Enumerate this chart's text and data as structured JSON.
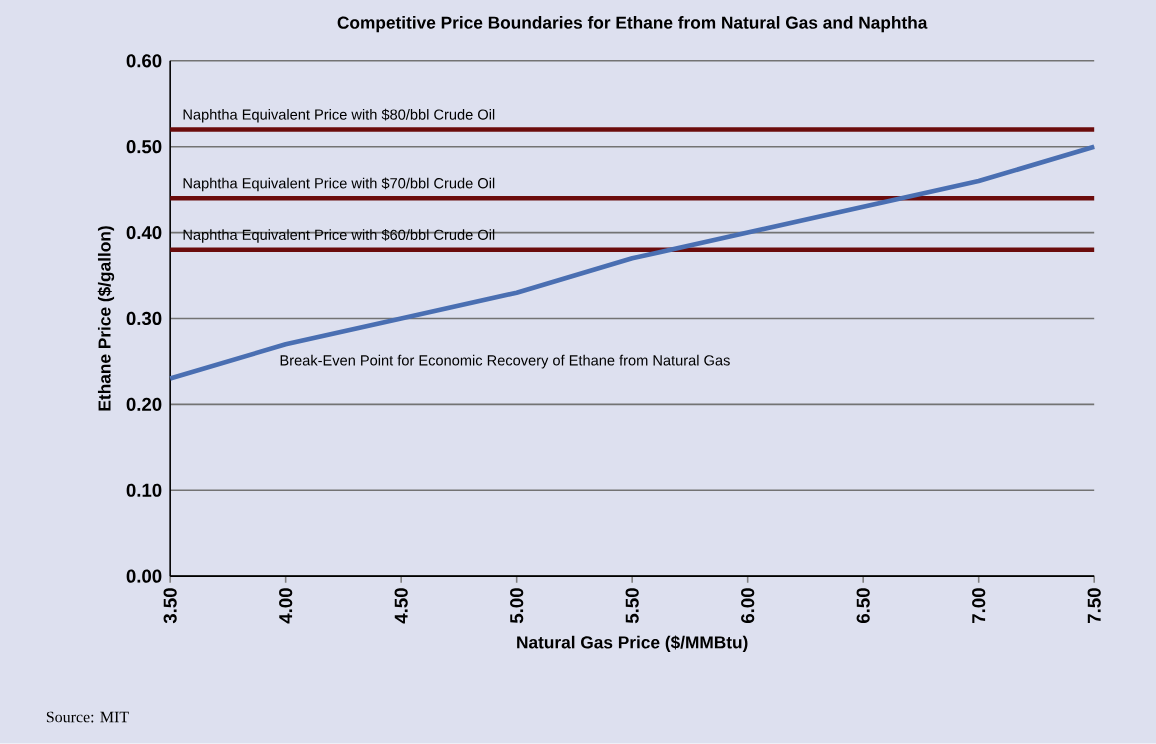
{
  "chart_data": {
    "type": "line",
    "title": "Competitive Price Boundaries for Ethane from Natural Gas and Naphtha",
    "xlabel": "Natural Gas Price ($/MMBtu)",
    "ylabel": "Ethane Price ($/gallon)",
    "x": [
      3.5,
      4.0,
      4.5,
      5.0,
      5.5,
      6.0,
      6.5,
      7.0,
      7.5
    ],
    "series": [
      {
        "color": "#4a6fb2",
        "values": [
          0.23,
          0.27,
          0.3,
          0.33,
          0.37,
          0.4,
          0.43,
          0.46,
          0.5
        ]
      }
    ],
    "xlim": [
      3.5,
      7.5
    ],
    "ylim": [
      0,
      0.6
    ],
    "xticks": [
      {
        "value": 3.5,
        "label": "3.50"
      },
      {
        "value": 4.0,
        "label": "4.00"
      },
      {
        "value": 4.5,
        "label": "4.50"
      },
      {
        "value": 5.0,
        "label": "5.00"
      },
      {
        "value": 5.5,
        "label": "5.50"
      },
      {
        "value": 6.0,
        "label": "6.00"
      },
      {
        "value": 6.5,
        "label": "6.50"
      },
      {
        "value": 7.0,
        "label": "7.00"
      },
      {
        "value": 7.5,
        "label": "7.50"
      }
    ],
    "yticks": [
      {
        "value": 0,
        "label": "0.00"
      },
      {
        "value": 0.1,
        "label": "0.10"
      },
      {
        "value": 0.2,
        "label": "0.20"
      },
      {
        "value": 0.3,
        "label": "0.30"
      },
      {
        "value": 0.4,
        "label": "0.40"
      },
      {
        "value": 0.5,
        "label": "0.50"
      },
      {
        "value": 0.6,
        "label": "0.60"
      }
    ],
    "grid": "y",
    "ref_lines": [
      {
        "axis": "y",
        "value": 0.52,
        "label": "Naphtha Equivalent Price with $80/bbl Crude Oil",
        "color": "#6b0c0c"
      },
      {
        "axis": "y",
        "value": 0.44,
        "label": "Naphtha Equivalent Price with $70/bbl Crude Oil",
        "color": "#6b0c0c"
      },
      {
        "axis": "y",
        "value": 0.38,
        "label": "Naphtha Equivalent Price with $60/bbl Crude Oil",
        "color": "#6b0c0c"
      }
    ],
    "annotations": [
      "Break-Even Point for Economic Recovery of Ethane from Natural Gas",
      "Source: MIT"
    ]
  }
}
